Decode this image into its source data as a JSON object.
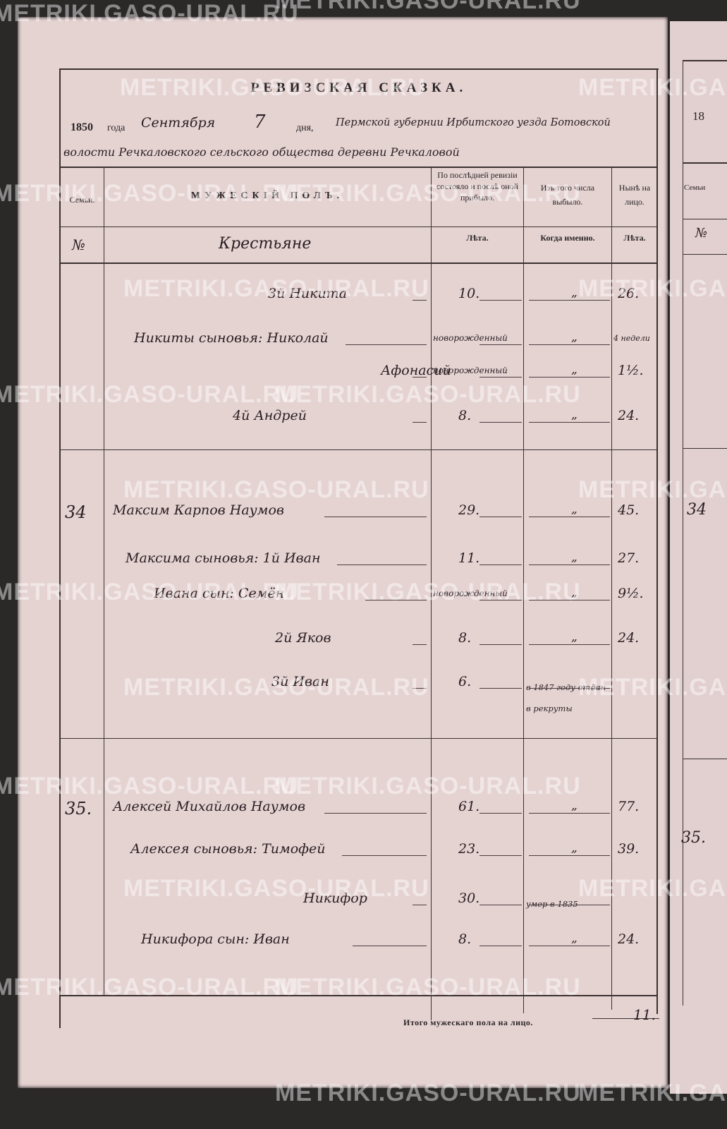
{
  "document": {
    "title": "РЕВИЗСКАЯ СКАЗКА.",
    "date_line": {
      "year": "1850",
      "year_label": "года",
      "month": "Сентября",
      "day": "7",
      "day_label": "дня,",
      "place_line1": "Пермской губернии Ирбитского уезда Ботовской",
      "place_line2": "волости Речкаловского сельского общества деревни Речкаловой"
    },
    "header": {
      "family_col": "Семьи.",
      "male_col": "МУЖЕСКІЙ ПОЛЪ.",
      "prev_col": "По послѣдней ревизіи состояло и послѣ оной прибыло.",
      "dropped_col": "Изъ того числа выбыло.",
      "now_col": "Нынѣ на лицо.",
      "number_sign": "№",
      "estate": "Крестьяне",
      "prev_sub": "Лѣта.",
      "dropped_sub": "Когда именно.",
      "now_sub": "Лѣта."
    },
    "rows": [
      {
        "family": "",
        "name": "3й Никита",
        "prev": "10.",
        "dropped": "„",
        "now": "26."
      },
      {
        "family": "",
        "name": "Никиты сыновья: Николай",
        "prev": "новорожденный",
        "dropped": "„",
        "now": "4 недели"
      },
      {
        "family": "",
        "name": "Афонасий",
        "prev": "новорожденный",
        "dropped": "„",
        "now": "1½."
      },
      {
        "family": "",
        "name": "4й Андрей",
        "prev": "8.",
        "dropped": "„",
        "now": "24."
      },
      {
        "family": "34",
        "name": "Максим Карпов Наумов",
        "prev": "29.",
        "dropped": "„",
        "now": "45."
      },
      {
        "family": "",
        "name": "Максима сыновья: 1й Иван",
        "prev": "11.",
        "dropped": "„",
        "now": "27."
      },
      {
        "family": "",
        "name": "Ивана сын: Семён",
        "prev": "новорожденный",
        "dropped": "„",
        "now": "9½."
      },
      {
        "family": "",
        "name": "2й Яков",
        "prev": "8.",
        "dropped": "„",
        "now": "24."
      },
      {
        "family": "",
        "name": "3й Иван",
        "prev": "6.",
        "dropped": "в 1847 году отдан в рекруты",
        "now": ""
      },
      {
        "family": "35.",
        "name": "Алексей Михайлов Наумов",
        "prev": "61.",
        "dropped": "„",
        "now": "77."
      },
      {
        "family": "",
        "name": "Алексея сыновья: Тимофей",
        "prev": "23.",
        "dropped": "„",
        "now": "39."
      },
      {
        "family": "",
        "name": "Никифор",
        "prev": "30.",
        "dropped": "умер в 1835",
        "now": ""
      },
      {
        "family": "",
        "name": "Никифора сын: Иван",
        "prev": "8.",
        "dropped": "„",
        "now": "24."
      }
    ],
    "footer": {
      "label": "Итого мужескаго пола на лицо.",
      "total": "11."
    },
    "next_page": {
      "year": "18",
      "family_col": "Семьи",
      "number_sign": "№",
      "family_34": "34",
      "family_35": "35."
    }
  },
  "watermark": "METRIKI.GASO-URAL.RU",
  "colors": {
    "paper": "#e5d3d2",
    "ink": "#2a1e22",
    "background": "#2b2828"
  }
}
